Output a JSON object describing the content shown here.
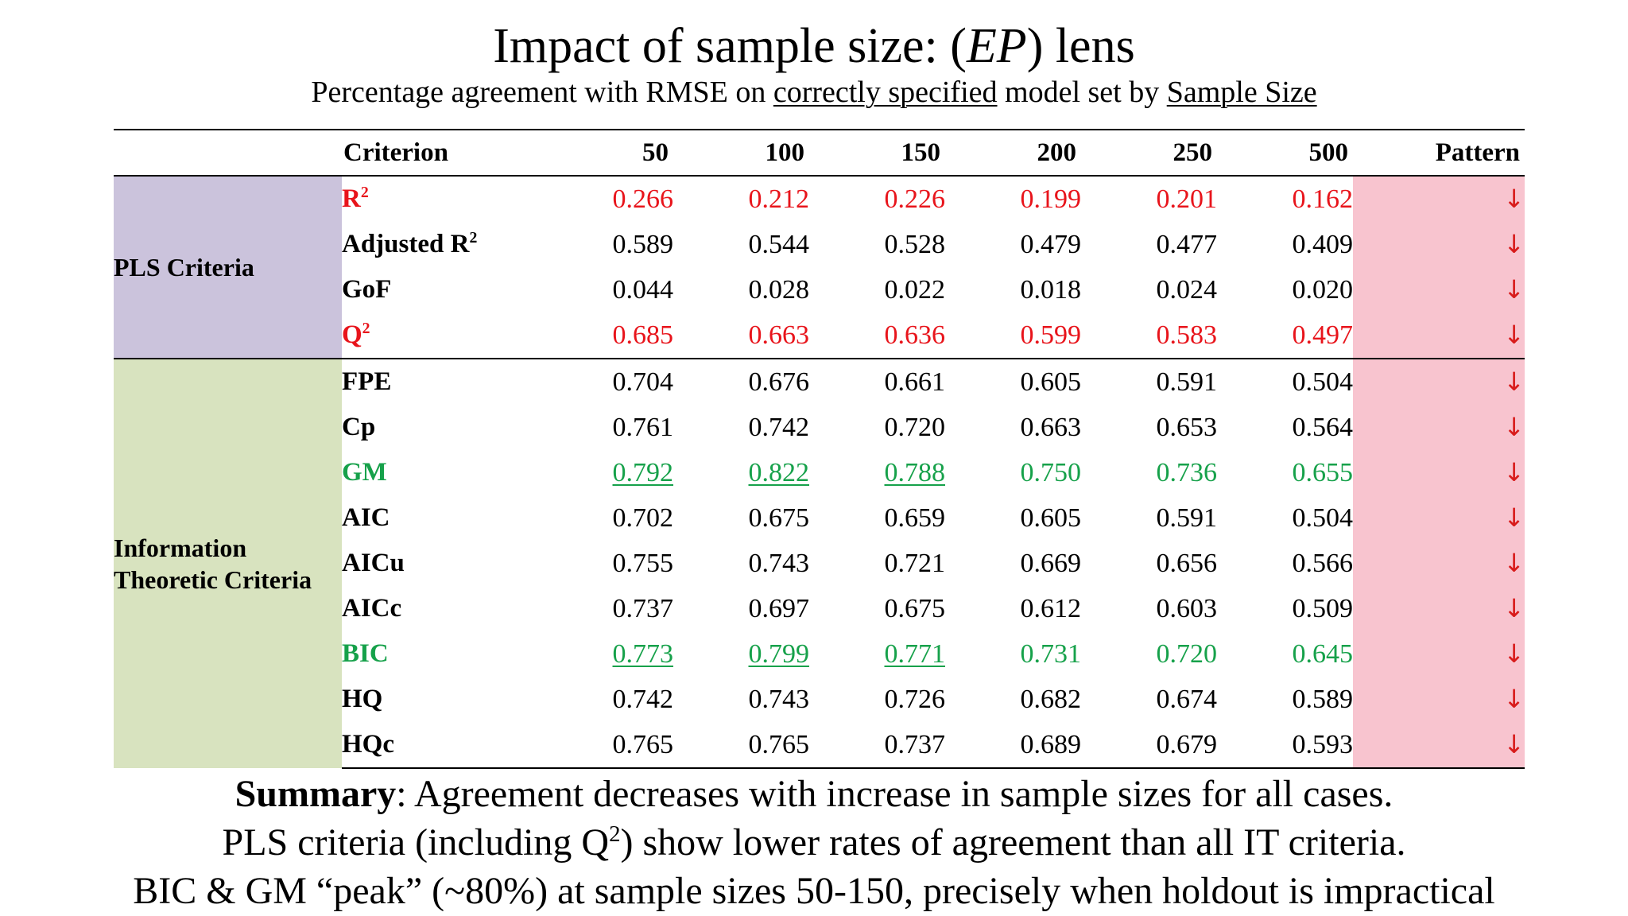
{
  "title": {
    "prefix": "Impact of sample size: (",
    "italic": "EP",
    "suffix": ") lens"
  },
  "subtitle": {
    "part1": "Percentage agreement with RMSE on ",
    "underline1": "correctly specified",
    "part2": " model set by ",
    "underline2": "Sample Size"
  },
  "table": {
    "headers": {
      "criterion": "Criterion",
      "sizes": [
        "50",
        "100",
        "150",
        "200",
        "250",
        "500"
      ],
      "pattern": "Pattern"
    },
    "groups": {
      "pls": "PLS Criteria",
      "it_line1": "Information",
      "it_line2": "Theoretic Criteria"
    },
    "pattern_arrow": "↓",
    "rows": [
      {
        "criterion": "R",
        "sup": "2",
        "values": [
          "0.266",
          "0.212",
          "0.226",
          "0.199",
          "0.201",
          "0.162"
        ]
      },
      {
        "criterion": "Adjusted R",
        "sup": "2",
        "values": [
          "0.589",
          "0.544",
          "0.528",
          "0.479",
          "0.477",
          "0.409"
        ]
      },
      {
        "criterion": "GoF",
        "values": [
          "0.044",
          "0.028",
          "0.022",
          "0.018",
          "0.024",
          "0.020"
        ]
      },
      {
        "criterion": "Q",
        "sup": "2",
        "values": [
          "0.685",
          "0.663",
          "0.636",
          "0.599",
          "0.583",
          "0.497"
        ]
      },
      {
        "criterion": "FPE",
        "values": [
          "0.704",
          "0.676",
          "0.661",
          "0.605",
          "0.591",
          "0.504"
        ]
      },
      {
        "criterion": "Cp",
        "values": [
          "0.761",
          "0.742",
          "0.720",
          "0.663",
          "0.653",
          "0.564"
        ]
      },
      {
        "criterion": "GM",
        "values": [
          "0.792",
          "0.822",
          "0.788",
          "0.750",
          "0.736",
          "0.655"
        ]
      },
      {
        "criterion": "AIC",
        "values": [
          "0.702",
          "0.675",
          "0.659",
          "0.605",
          "0.591",
          "0.504"
        ]
      },
      {
        "criterion": "AICu",
        "values": [
          "0.755",
          "0.743",
          "0.721",
          "0.669",
          "0.656",
          "0.566"
        ]
      },
      {
        "criterion": "AICc",
        "values": [
          "0.737",
          "0.697",
          "0.675",
          "0.612",
          "0.603",
          "0.509"
        ]
      },
      {
        "criterion": "BIC",
        "values": [
          "0.773",
          "0.799",
          "0.771",
          "0.731",
          "0.720",
          "0.645"
        ]
      },
      {
        "criterion": "HQ",
        "values": [
          "0.742",
          "0.743",
          "0.726",
          "0.682",
          "0.674",
          "0.589"
        ]
      },
      {
        "criterion": "HQc",
        "values": [
          "0.765",
          "0.765",
          "0.737",
          "0.689",
          "0.679",
          "0.593"
        ]
      }
    ]
  },
  "colors": {
    "highlight_red": "#e8141b",
    "highlight_green": "#16a14a",
    "pls_group_bg": "#cbc3dc",
    "it_group_bg": "#d8e3bf",
    "pattern_bg": "#f8c4cf"
  },
  "summary": {
    "bold": "Summary",
    "line1_rest": ": Agreement decreases with increase in sample sizes for all cases.",
    "line2_pre": "PLS criteria (including Q",
    "line2_sup": "2",
    "line2_post": ") show lower rates of agreement than all IT criteria.",
    "line3": "BIC & GM “peak” (~80%) at sample sizes 50-150, precisely when holdout is impractical"
  }
}
